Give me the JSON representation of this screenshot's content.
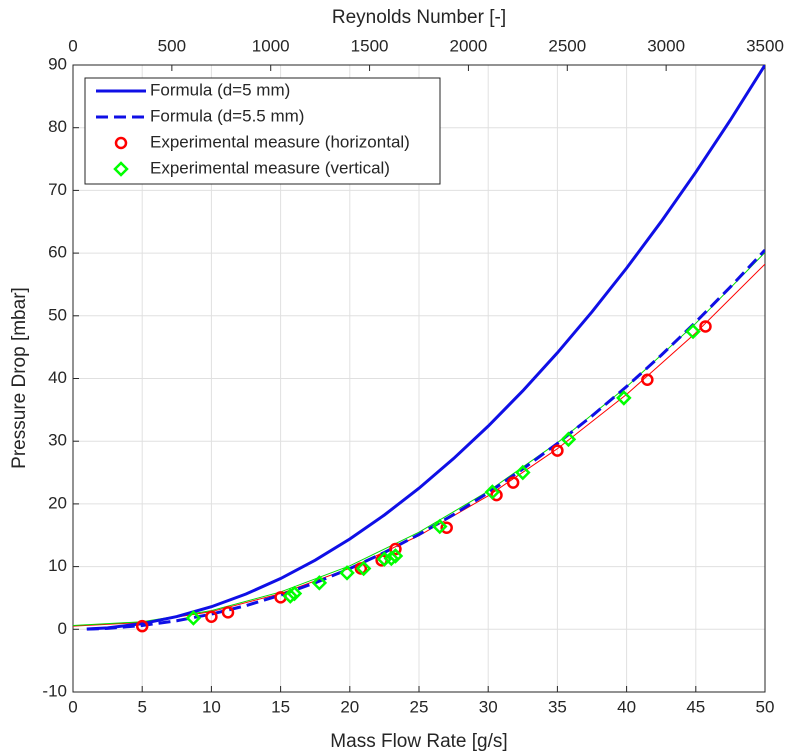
{
  "chart_data": {
    "type": "scatter",
    "xlabel": "Mass Flow Rate [g/s]",
    "ylabel": "Pressure Drop [mbar]",
    "x2label": "Reynolds Number [-]",
    "xlim": [
      0,
      50
    ],
    "xticks": [
      0,
      5,
      10,
      15,
      20,
      25,
      30,
      35,
      40,
      45,
      50
    ],
    "ylim": [
      -10,
      90
    ],
    "yticks": [
      -10,
      0,
      10,
      20,
      30,
      40,
      50,
      60,
      70,
      80,
      90
    ],
    "x2lim": [
      0,
      3500
    ],
    "x2ticks": [
      0,
      500,
      1000,
      1500,
      2000,
      2500,
      3000,
      3500
    ],
    "grid": true,
    "legend": "upper left",
    "series": [
      {
        "name": "Formula (d=5 mm)",
        "color": "#0f0fe6",
        "style": "line",
        "width": 3,
        "dash": false,
        "x": [
          1,
          2.5,
          5,
          7.5,
          10,
          12.5,
          15,
          17.5,
          20,
          22.5,
          25,
          27.5,
          30,
          32.5,
          35,
          37.5,
          40,
          42.5,
          45,
          47.5,
          50
        ],
        "values": [
          0.04,
          0.23,
          0.9,
          2.03,
          3.6,
          5.63,
          8.1,
          11.03,
          14.4,
          18.23,
          22.5,
          27.23,
          32.4,
          38.03,
          44.1,
          50.63,
          57.6,
          65.03,
          72.9,
          81.23,
          90
        ]
      },
      {
        "name": "Formula (d=5.5 mm)",
        "color": "#0f0fe6",
        "style": "line",
        "width": 3,
        "dash": true,
        "x": [
          1,
          2.5,
          5,
          7.5,
          10,
          12.5,
          15,
          17.5,
          20,
          22.5,
          25,
          27.5,
          30,
          32.5,
          35,
          37.5,
          40,
          42.5,
          45,
          47.5,
          50
        ],
        "values": [
          0.02,
          0.15,
          0.61,
          1.36,
          2.42,
          3.78,
          5.45,
          7.41,
          9.68,
          12.25,
          15.13,
          18.3,
          21.78,
          25.56,
          29.65,
          34.03,
          38.72,
          43.71,
          49.01,
          54.6,
          60.5
        ]
      },
      {
        "name": "Experimental measure (horizontal)",
        "color": "#ff0000",
        "style": "marker",
        "marker": "circle",
        "x": [
          5,
          10,
          11.2,
          15,
          20.8,
          22.3,
          23.3,
          27,
          30.6,
          31.8,
          35,
          41.5,
          45.7
        ],
        "values": [
          0.5,
          2,
          2.7,
          5.1,
          9.7,
          11,
          12.8,
          16.2,
          21.4,
          23.4,
          28.5,
          39.8,
          48.3
        ]
      },
      {
        "name": "Experimental measure (vertical)",
        "color": "#00ff00",
        "style": "marker",
        "marker": "diamond",
        "x": [
          8.7,
          15.7,
          16,
          17.8,
          19.8,
          21,
          22.5,
          23,
          23.3,
          26.5,
          30.3,
          32.5,
          35.8,
          39.8,
          44.8
        ],
        "values": [
          1.8,
          5.3,
          5.7,
          7.4,
          9,
          9.7,
          11.2,
          11.3,
          11.7,
          16.4,
          21.9,
          25,
          30.3,
          36.9,
          47.5
        ]
      },
      {
        "color": "#ff0000",
        "style": "line",
        "width": 1,
        "dash": false,
        "x": [
          0,
          5,
          10,
          15,
          20,
          25,
          30,
          35,
          40,
          45,
          50
        ],
        "values": [
          0.5,
          1.08,
          2.81,
          5.7,
          9.74,
          14.94,
          21.29,
          28.8,
          37.46,
          47.28,
          58.25
        ]
      },
      {
        "color": "#00dd00",
        "style": "line",
        "width": 1,
        "dash": false,
        "x": [
          0,
          5,
          10,
          15,
          20,
          25,
          30,
          35,
          40,
          45,
          50
        ],
        "values": [
          0.6,
          1.2,
          2.98,
          5.96,
          10.12,
          15.48,
          22.02,
          29.76,
          38.68,
          48.8,
          60.1
        ]
      }
    ]
  }
}
